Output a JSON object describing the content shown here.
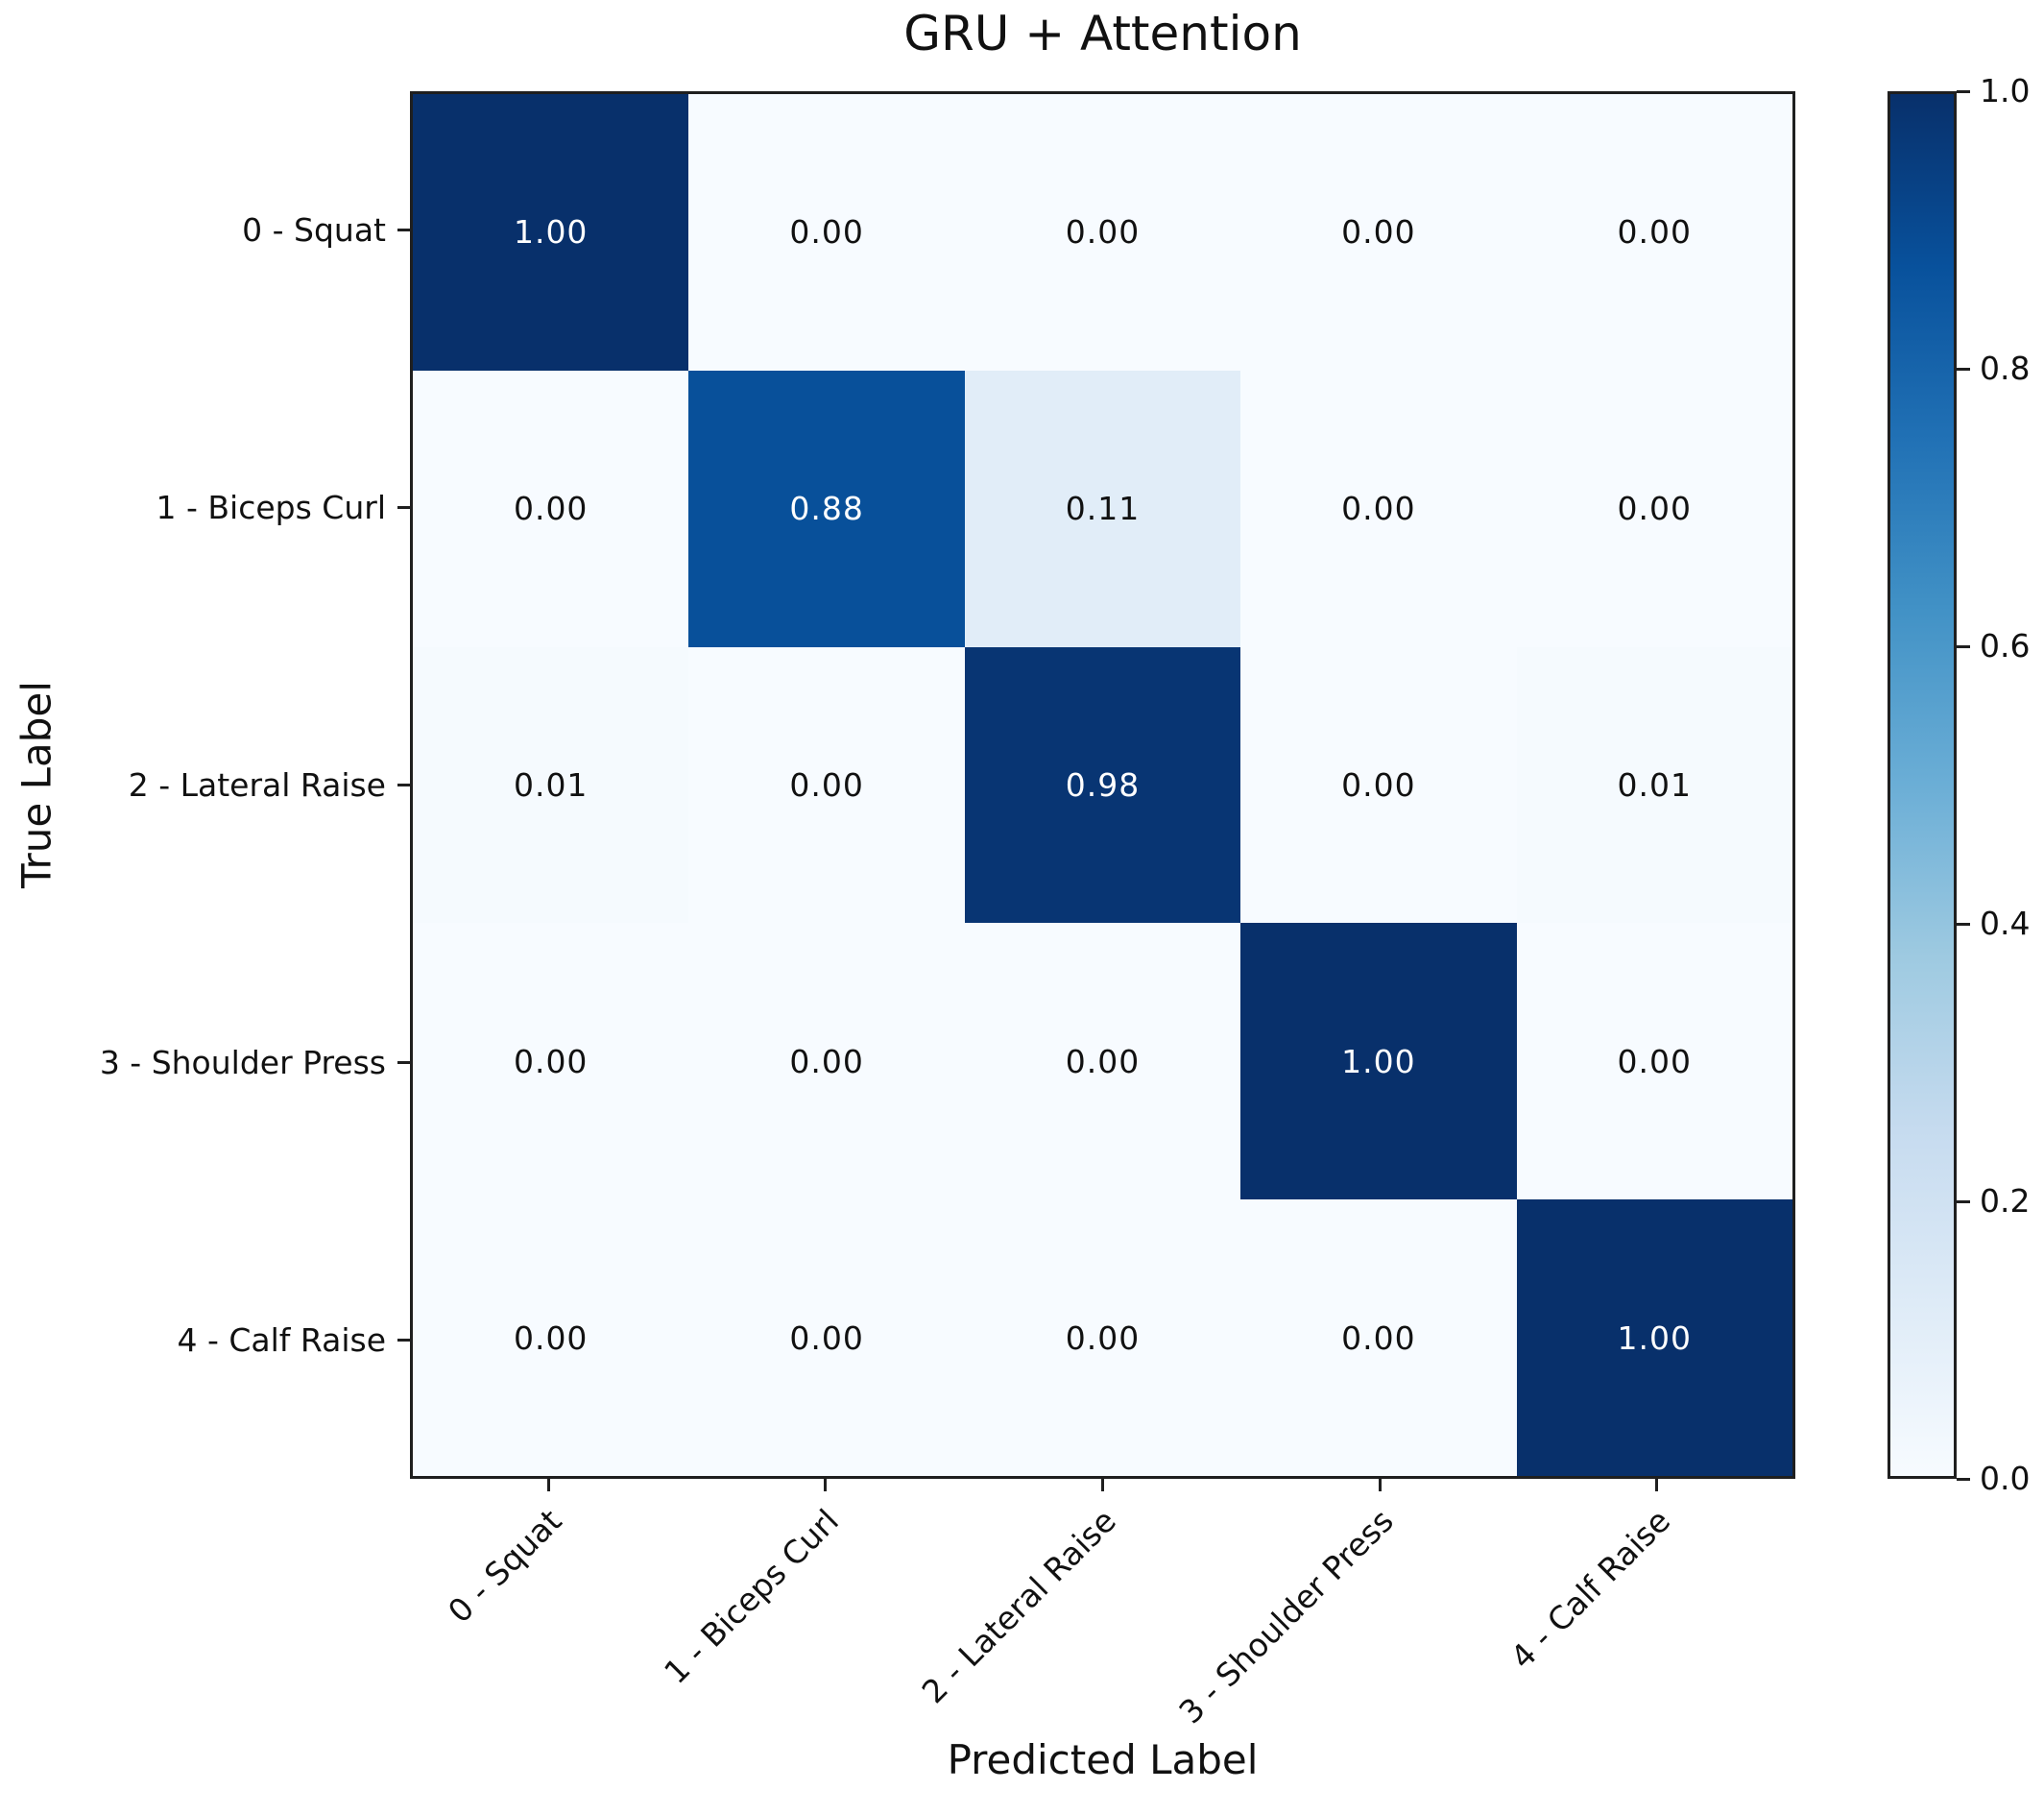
{
  "title": "GRU + Attention",
  "axes": {
    "x_label": "Predicted Label",
    "y_label": "True Label"
  },
  "colorbar": {
    "tick_labels": [
      "1.0",
      "0.8",
      "0.6",
      "0.4",
      "0.2",
      "0.0"
    ],
    "tick_values": [
      1.0,
      0.8,
      0.6,
      0.4,
      0.2,
      0.0
    ],
    "min": 0.0,
    "max": 1.0
  },
  "colors": {
    "colormap_name": "Blues",
    "colormap_stops": [
      "#f7fbff",
      "#deebf7",
      "#c6dbef",
      "#9ecae1",
      "#6baed6",
      "#4292c6",
      "#2171b5",
      "#08519c",
      "#08306b"
    ],
    "annotation_light": "#ffffff",
    "annotation_dark": "#111111",
    "spine": "#1f1f1f"
  },
  "chart_data": {
    "type": "heatmap",
    "title": "GRU + Attention",
    "xlabel": "Predicted Label",
    "ylabel": "True Label",
    "x_categories": [
      "0 - Squat",
      "1 - Biceps Curl",
      "2 - Lateral Raise",
      "3 - Shoulder Press",
      "4 - Calf Raise"
    ],
    "y_categories": [
      "0 - Squat",
      "1 - Biceps Curl",
      "2 - Lateral Raise",
      "3 - Shoulder Press",
      "4 - Calf Raise"
    ],
    "rows": [
      [
        1.0,
        0.0,
        0.0,
        0.0,
        0.0
      ],
      [
        0.0,
        0.88,
        0.11,
        0.0,
        0.0
      ],
      [
        0.01,
        0.0,
        0.98,
        0.0,
        0.01
      ],
      [
        0.0,
        0.0,
        0.0,
        1.0,
        0.0
      ],
      [
        0.0,
        0.0,
        0.0,
        0.0,
        1.0
      ]
    ],
    "cell_labels": [
      [
        "1.00",
        "0.00",
        "0.00",
        "0.00",
        "0.00"
      ],
      [
        "0.00",
        "0.88",
        "0.11",
        "0.00",
        "0.00"
      ],
      [
        "0.01",
        "0.00",
        "0.98",
        "0.00",
        "0.01"
      ],
      [
        "0.00",
        "0.00",
        "0.00",
        "1.00",
        "0.00"
      ],
      [
        "0.00",
        "0.00",
        "0.00",
        "0.00",
        "1.00"
      ]
    ],
    "vmin": 0.0,
    "vmax": 1.0,
    "text_color_threshold": 0.5,
    "grid": false,
    "legend_position": "right-colorbar",
    "x_tick_rotation_deg": 45
  }
}
